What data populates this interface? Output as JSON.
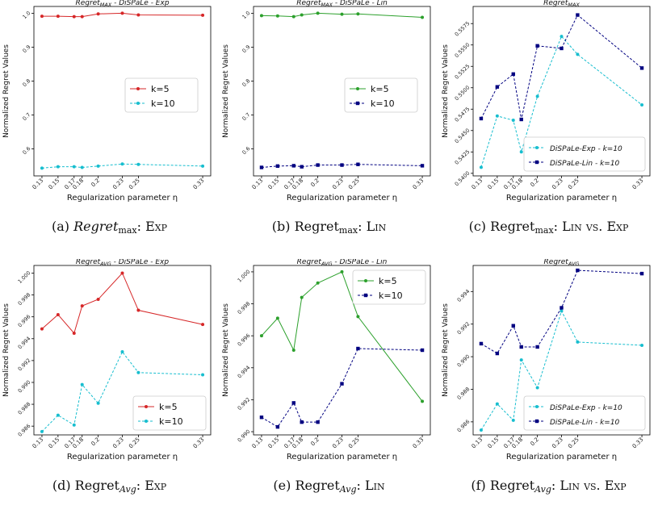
{
  "chart_data": [
    {
      "type": "line",
      "title": "Regret_MAX - DiSPaLe - Exp",
      "xlabel": "Regularization parameter η",
      "ylabel": "Normalized Regret Values",
      "x": [
        0.13,
        0.15,
        0.17,
        0.18,
        0.2,
        0.23,
        0.25,
        0.33
      ],
      "xticklabels": [
        "0.13",
        "0.15",
        "0.17",
        "0.18",
        "0.2",
        "0.23",
        "0.25",
        "0.33"
      ],
      "ylim": [
        0.52,
        1.02
      ],
      "yticks": [
        0.6,
        0.7,
        0.8,
        0.9,
        1.0
      ],
      "yticklabels": [
        "0.6",
        "0.7",
        "0.8",
        "0.9",
        "1.0"
      ],
      "legend_position": "center-right",
      "series": [
        {
          "name": "k=5",
          "color": "#d62728",
          "style": "solid",
          "marker": "circle",
          "values": [
            0.991,
            0.991,
            0.99,
            0.99,
            0.998,
            1.0,
            0.995,
            0.994
          ]
        },
        {
          "name": "k=10",
          "color": "#17becf",
          "style": "dashed",
          "marker": "circle",
          "values": [
            0.543,
            0.547,
            0.547,
            0.545,
            0.549,
            0.555,
            0.554,
            0.549
          ]
        }
      ],
      "caption": {
        "prefix": "(a)",
        "main": "Regret",
        "sub": "max",
        "suffix": ": Exp"
      }
    },
    {
      "type": "line",
      "title": "Regret_MAX - DiSPaLe - Lin",
      "xlabel": "Regularization parameter η",
      "ylabel": "Normalized Regret Values",
      "x": [
        0.13,
        0.15,
        0.17,
        0.18,
        0.2,
        0.23,
        0.25,
        0.33
      ],
      "xticklabels": [
        "0.13",
        "0.15",
        "0.17",
        "0.18",
        "0.2",
        "0.23",
        "0.25",
        "0.33"
      ],
      "ylim": [
        0.52,
        1.02
      ],
      "yticks": [
        0.6,
        0.7,
        0.8,
        0.9,
        1.0
      ],
      "yticklabels": [
        "0.6",
        "0.7",
        "0.8",
        "0.9",
        "1.0"
      ],
      "legend_position": "center-right",
      "series": [
        {
          "name": "k=5",
          "color": "#2ca02c",
          "style": "solid",
          "marker": "circle",
          "values": [
            0.993,
            0.992,
            0.99,
            0.995,
            1.0,
            0.997,
            0.998,
            0.988
          ]
        },
        {
          "name": "k=10",
          "color": "#000080",
          "style": "dashed",
          "marker": "square",
          "values": [
            0.545,
            0.549,
            0.55,
            0.547,
            0.552,
            0.552,
            0.554,
            0.55
          ]
        }
      ],
      "caption": {
        "prefix": "(b)",
        "main": "Regret",
        "sub": "max",
        "suffix": ": Lin"
      }
    },
    {
      "type": "line",
      "title": "Regret_MAX",
      "xlabel": "Regularization parameter η",
      "ylabel": "Normalized Regret Values",
      "x": [
        0.13,
        0.15,
        0.17,
        0.18,
        0.2,
        0.23,
        0.25,
        0.33
      ],
      "xticklabels": [
        "0.13",
        "0.15",
        "0.17",
        "0.18",
        "0.2",
        "0.23",
        "0.25",
        "0.33"
      ],
      "ylim": [
        0.5397,
        0.5595
      ],
      "yticks": [
        0.54,
        0.5425,
        0.545,
        0.5475,
        0.55,
        0.5525,
        0.555,
        0.5575
      ],
      "yticklabels": [
        "0.5400",
        "0.5425",
        "0.5450",
        "0.5475",
        "0.5500",
        "0.5525",
        "0.5550",
        "0.5575"
      ],
      "legend_position": "bottom-right",
      "series": [
        {
          "name": "DiSPaLe-Exp - k=10",
          "color": "#17becf",
          "style": "dashed",
          "marker": "circle",
          "values": [
            0.5407,
            0.5467,
            0.5462,
            0.5425,
            0.549,
            0.556,
            0.5539,
            0.548
          ]
        },
        {
          "name": "DiSPaLe-Lin - k=10",
          "color": "#000080",
          "style": "dashed",
          "marker": "square",
          "values": [
            0.5464,
            0.5501,
            0.5516,
            0.5463,
            0.5549,
            0.5546,
            0.5585,
            0.5523
          ]
        }
      ],
      "caption": {
        "prefix": "(c)",
        "main": "Regret",
        "sub": "max",
        "suffix": ": Lin vs. Exp"
      }
    },
    {
      "type": "line",
      "title": "Regret_AVG - DiSPaLe - Exp",
      "xlabel": "Regularization parameter η",
      "ylabel": "Normalized Regret Values",
      "x": [
        0.13,
        0.15,
        0.17,
        0.18,
        0.2,
        0.23,
        0.25,
        0.33
      ],
      "xticklabels": [
        "0.13",
        "0.15",
        "0.17",
        "0.18",
        "0.2",
        "0.23",
        "0.25",
        "0.33"
      ],
      "ylim": [
        0.9852,
        1.0007
      ],
      "yticks": [
        0.986,
        0.988,
        0.99,
        0.992,
        0.994,
        0.996,
        0.998,
        1.0
      ],
      "yticklabels": [
        "0.986",
        "0.988",
        "0.990",
        "0.992",
        "0.994",
        "0.996",
        "0.998",
        "1.000"
      ],
      "legend_position": "bottom-right",
      "series": [
        {
          "name": "k=5",
          "color": "#d62728",
          "style": "solid",
          "marker": "circle",
          "values": [
            0.9949,
            0.9962,
            0.9945,
            0.997,
            0.9976,
            1.0,
            0.9966,
            0.9953
          ]
        },
        {
          "name": "k=10",
          "color": "#17becf",
          "style": "dashed",
          "marker": "circle",
          "values": [
            0.9855,
            0.987,
            0.9861,
            0.9898,
            0.9881,
            0.9928,
            0.9909,
            0.9907
          ]
        }
      ],
      "caption": {
        "prefix": "(d)",
        "main": "Regret",
        "sub": "Avg",
        "suffix": ": Exp"
      }
    },
    {
      "type": "line",
      "title": "Regret_AVG - DiSPaLe - Lin",
      "xlabel": "Regularization parameter η",
      "ylabel": "Normalized Regret Values",
      "x": [
        0.13,
        0.15,
        0.17,
        0.18,
        0.2,
        0.23,
        0.25,
        0.33
      ],
      "xticklabels": [
        "0.13",
        "0.15",
        "0.17",
        "0.18",
        "0.2",
        "0.23",
        "0.25",
        "0.33"
      ],
      "ylim": [
        0.9898,
        1.0004
      ],
      "yticks": [
        0.99,
        0.992,
        0.994,
        0.996,
        0.998,
        1.0
      ],
      "yticklabels": [
        "0.990",
        "0.992",
        "0.994",
        "0.996",
        "0.998",
        "1.000"
      ],
      "legend_position": "top-right",
      "series": [
        {
          "name": "k=5",
          "color": "#2ca02c",
          "style": "solid",
          "marker": "circle",
          "values": [
            0.996,
            0.9971,
            0.9951,
            0.9984,
            0.9993,
            1.0,
            0.9972,
            0.9919
          ]
        },
        {
          "name": "k=10",
          "color": "#000080",
          "style": "dashed",
          "marker": "square",
          "values": [
            0.9909,
            0.9903,
            0.9918,
            0.9906,
            0.9906,
            0.993,
            0.9952,
            0.9951
          ]
        }
      ],
      "caption": {
        "prefix": "(e)",
        "main": "Regret",
        "sub": "Avg",
        "suffix": ": Lin"
      }
    },
    {
      "type": "line",
      "title": "Regret_AVG",
      "xlabel": "Regularization parameter η",
      "ylabel": "Normalized Regret Values",
      "x": [
        0.13,
        0.15,
        0.17,
        0.18,
        0.2,
        0.23,
        0.25,
        0.33
      ],
      "xticklabels": [
        "0.13",
        "0.15",
        "0.17",
        "0.18",
        "0.2",
        "0.23",
        "0.25",
        "0.33"
      ],
      "ylim": [
        0.9852,
        0.9956
      ],
      "yticks": [
        0.986,
        0.988,
        0.99,
        0.992,
        0.994
      ],
      "yticklabels": [
        "0.986",
        "0.988",
        "0.990",
        "0.992",
        "0.994"
      ],
      "legend_position": "bottom-right",
      "series": [
        {
          "name": "DiSPaLe-Exp - k=10",
          "color": "#17becf",
          "style": "dashed",
          "marker": "circle",
          "values": [
            0.9855,
            0.9871,
            0.9861,
            0.9898,
            0.9881,
            0.9928,
            0.9909,
            0.9907
          ]
        },
        {
          "name": "DiSPaLe-Lin - k=10",
          "color": "#000080",
          "style": "dashed",
          "marker": "square",
          "values": [
            0.9908,
            0.9902,
            0.9919,
            0.9906,
            0.9906,
            0.993,
            0.9953,
            0.9951
          ]
        }
      ],
      "caption": {
        "prefix": "(f)",
        "main": "Regret",
        "sub": "Avg",
        "suffix": ": Lin  vs. Exp"
      }
    }
  ]
}
